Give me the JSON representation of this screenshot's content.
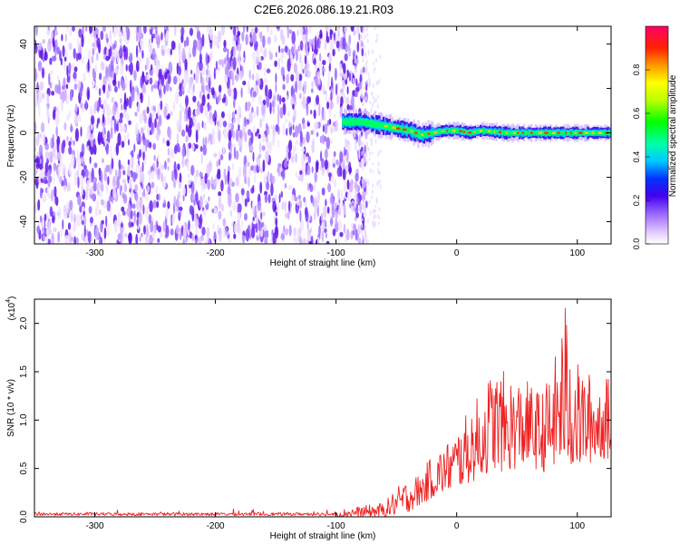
{
  "title": "C2E6.2026.086.19.21.R03",
  "chart_data": [
    {
      "type": "heatmap",
      "xlabel": "Height of straight line (km)",
      "ylabel": "Frequency (Hz)",
      "xlim": [
        -350,
        128
      ],
      "ylim": [
        -50,
        48
      ],
      "xticks": [
        -300,
        -200,
        -100,
        0,
        100
      ],
      "yticks": [
        -40,
        -20,
        0,
        20,
        40
      ],
      "colorbar": {
        "label": "Normalized spectral amplitude",
        "range": [
          0.0,
          1.0
        ],
        "ticks": [
          0.0,
          0.2,
          0.4,
          0.6,
          0.8
        ]
      },
      "noise_region_x": [
        -350,
        -79
      ],
      "signal_track": {
        "x": [
          -95,
          -80,
          -70,
          -60,
          -50,
          -40,
          -30,
          -20,
          -10,
          0,
          10,
          20,
          40,
          60,
          80,
          100,
          128
        ],
        "frequency_hz": [
          5,
          5,
          4,
          3,
          2,
          1,
          -1,
          0,
          1,
          1,
          0,
          1,
          0,
          0,
          0,
          0,
          0
        ]
      }
    },
    {
      "type": "line",
      "xlabel": "Height of straight line (km)",
      "ylabel": "SNR (10 * v/v)",
      "scale_label": "(x10",
      "scale_exp": "4",
      "xlim": [
        -350,
        128
      ],
      "ylim": [
        0,
        2.25
      ],
      "xticks": [
        -300,
        -200,
        -100,
        0,
        100
      ],
      "yticks": [
        0.0,
        0.5,
        1.0,
        1.5,
        2.0
      ],
      "series": [
        {
          "color": "#ee2222",
          "envelope": {
            "x": [
              -350,
              -100,
              -60,
              -50,
              -40,
              -30,
              -20,
              -10,
              0,
              10,
              20,
              30,
              40,
              50,
              60,
              70,
              80,
              90,
              100,
              110,
              120,
              128
            ],
            "low": [
              0.0,
              0.0,
              0.0,
              0.02,
              0.05,
              0.12,
              0.2,
              0.25,
              0.3,
              0.35,
              0.4,
              0.5,
              0.45,
              0.5,
              0.55,
              0.45,
              0.5,
              0.5,
              0.5,
              0.55,
              0.6,
              0.6
            ],
            "high": [
              0.07,
              0.07,
              0.15,
              0.3,
              0.4,
              0.45,
              0.65,
              0.75,
              0.9,
              1.1,
              1.3,
              1.55,
              1.5,
              1.45,
              1.4,
              1.3,
              1.55,
              2.25,
              1.6,
              1.5,
              1.45,
              1.45
            ]
          }
        }
      ]
    }
  ]
}
